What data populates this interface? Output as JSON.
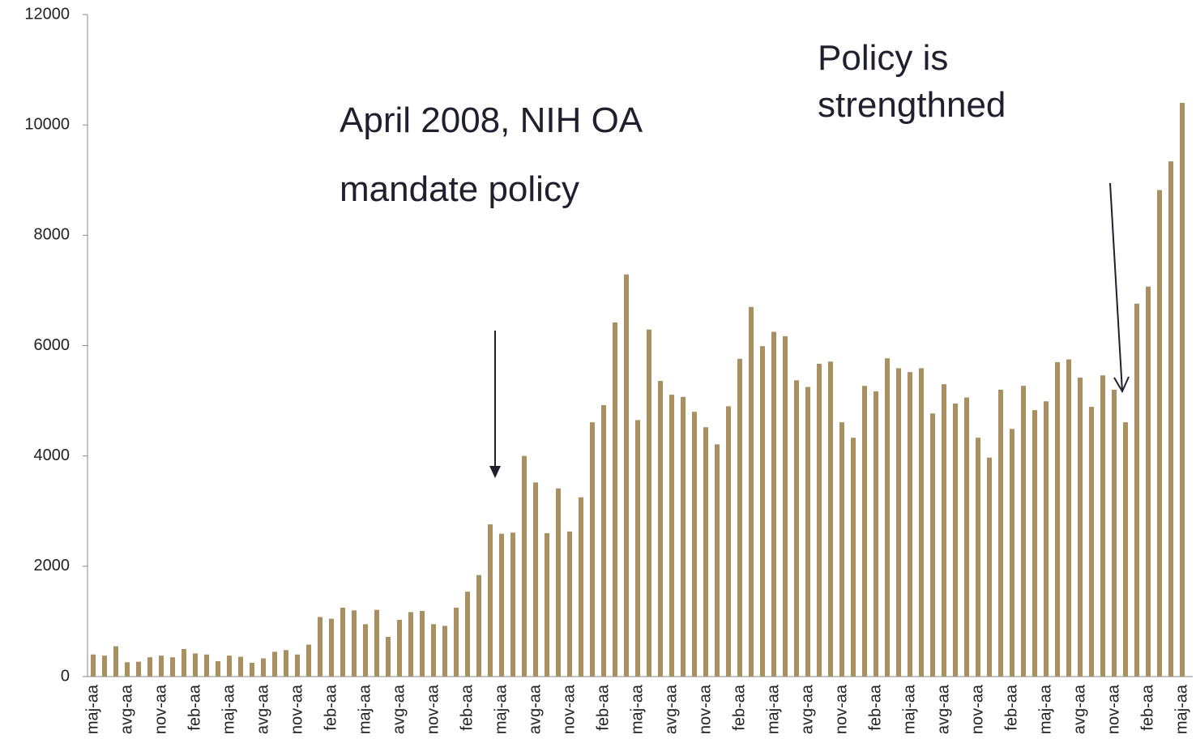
{
  "chart_data": {
    "type": "bar",
    "color": "#a89063",
    "categories": [
      "maj-aa",
      null,
      null,
      "avg-aa",
      null,
      null,
      "nov-aa",
      null,
      null,
      "feb-aa",
      null,
      null,
      "maj-aa",
      null,
      null,
      "avg-aa",
      null,
      null,
      "nov-aa",
      null,
      null,
      "feb-aa",
      null,
      null,
      "maj-aa",
      null,
      null,
      "avg-aa",
      null,
      null,
      "nov-aa",
      null,
      null,
      "feb-aa",
      null,
      null,
      "maj-aa",
      null,
      null,
      "avg-aa",
      null,
      null,
      "nov-aa",
      null,
      null,
      "feb-aa",
      null,
      null,
      "maj-aa",
      null,
      null,
      "avg-aa",
      null,
      null,
      "nov-aa",
      null,
      null,
      "feb-aa",
      null,
      null,
      "maj-aa",
      null,
      null,
      "avg-aa",
      null,
      null,
      "nov-aa",
      null,
      null,
      "feb-aa",
      null,
      null,
      "maj-aa",
      null,
      null,
      "avg-aa",
      null,
      null,
      "nov-aa",
      null,
      null,
      "feb-aa",
      null,
      null,
      "maj-aa",
      null,
      null,
      "avg-aa",
      null,
      null,
      "nov-aa",
      null,
      null,
      "feb-aa",
      null,
      null,
      "maj-aa"
    ],
    "values": [
      400,
      380,
      550,
      260,
      270,
      350,
      380,
      350,
      500,
      420,
      400,
      280,
      380,
      360,
      250,
      330,
      450,
      480,
      400,
      580,
      1080,
      1050,
      1250,
      1200,
      950,
      1210,
      720,
      1030,
      1170,
      1190,
      950,
      920,
      1250,
      1540,
      1840,
      2760,
      2590,
      2610,
      4000,
      3520,
      2600,
      3410,
      2630,
      3250,
      4610,
      4920,
      6420,
      7290,
      4650,
      6290,
      5360,
      5110,
      5070,
      4800,
      4520,
      4210,
      4900,
      5760,
      6700,
      5990,
      6250,
      6170,
      5370,
      5250,
      5670,
      5710,
      4610,
      4330,
      5270,
      5170,
      5770,
      5590,
      5520,
      5590,
      4770,
      5300,
      4950,
      5060,
      4330,
      3970,
      5200,
      4490,
      5270,
      4830,
      4990,
      5700,
      5750,
      5420,
      4890,
      5460,
      5200,
      4610,
      6760,
      7070,
      8820,
      9340,
      10400
    ],
    "ylim": [
      0,
      12000
    ],
    "yticks": [
      0,
      2000,
      4000,
      6000,
      8000,
      10000,
      12000
    ],
    "grid": false,
    "annotations": [
      {
        "lines": [
          "April 2008, NIH OA",
          "mandate  policy"
        ]
      },
      {
        "lines": [
          "Policy is",
          "strengthned"
        ]
      }
    ]
  }
}
